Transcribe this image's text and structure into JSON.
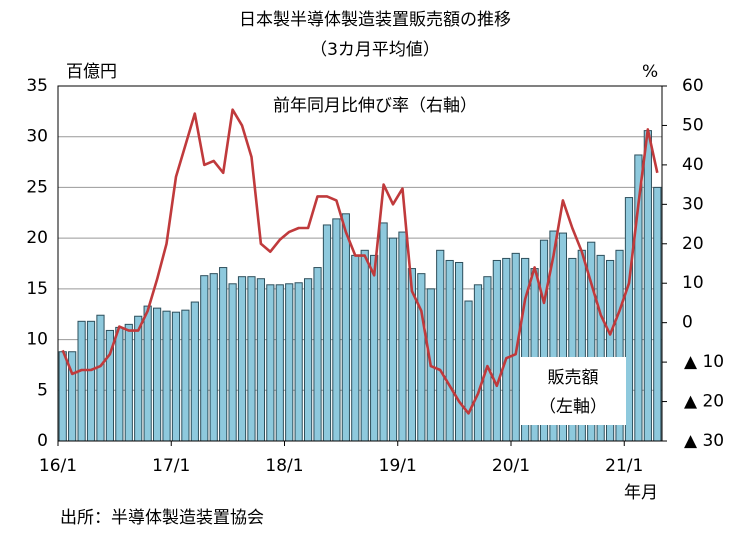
{
  "chart_data": {
    "type": "bar_line",
    "title": "日本製半導体製造装置販売額の推移",
    "subtitle": "（3カ月平均値）",
    "y_label": "百億円",
    "y2_label": "%",
    "x_label": "年月",
    "source": "出所：半導体製造装置協会",
    "annotations": [
      "前年同月比伸び率（右軸）",
      "販売額",
      "（左軸）"
    ],
    "categories": [
      "16/1",
      null,
      null,
      null,
      null,
      null,
      null,
      null,
      null,
      null,
      null,
      null,
      "17/1",
      null,
      null,
      null,
      null,
      null,
      null,
      null,
      null,
      null,
      null,
      null,
      "18/1",
      null,
      null,
      null,
      null,
      null,
      null,
      null,
      null,
      null,
      null,
      null,
      "19/1",
      null,
      null,
      null,
      null,
      null,
      null,
      null,
      null,
      null,
      null,
      null,
      "20/1",
      null,
      null,
      null,
      null,
      null,
      null,
      null,
      null,
      null,
      null,
      null,
      "21/1",
      null,
      null,
      null
    ],
    "series": [
      {
        "name": "販売額",
        "color": "#8ec9dd",
        "values": [
          8.8,
          8.8,
          11.8,
          11.8,
          12.4,
          10.9,
          11.2,
          11.5,
          12.3,
          13.3,
          13.1,
          12.8,
          12.7,
          12.9,
          13.7,
          16.3,
          16.5,
          17.1,
          15.5,
          16.2,
          16.2,
          16.0,
          15.4,
          15.4,
          15.5,
          15.6,
          16.0,
          17.1,
          21.3,
          21.9,
          22.4,
          18.3,
          18.8,
          18.3,
          21.5,
          20.0,
          20.6,
          17.0,
          16.5,
          15.0,
          18.8,
          17.8,
          17.6,
          13.8,
          15.4,
          16.2,
          17.8,
          18.0,
          18.5,
          18.0,
          17.0,
          19.8,
          20.7,
          20.5,
          18.0,
          18.8,
          19.6,
          18.3,
          17.8,
          18.8,
          24.0,
          28.2,
          30.6,
          25.0
        ]
      },
      {
        "name": "前年同月比伸び率",
        "color": "#c03a3c",
        "axis": "y2",
        "values": [
          -7,
          -13,
          -12,
          -12,
          -11,
          -8,
          -1,
          -2,
          -2,
          3,
          11,
          20,
          37,
          45,
          53,
          40,
          41,
          38,
          54,
          50,
          42,
          20,
          18,
          21,
          23,
          24,
          24,
          32,
          32,
          31,
          23,
          17,
          17,
          12,
          35,
          30,
          34,
          8,
          3,
          -11,
          -12,
          -16,
          -20,
          -23,
          -18,
          -11,
          -16,
          -9,
          -8,
          6,
          14,
          5,
          17,
          31,
          24,
          18,
          10,
          2,
          -3,
          3,
          10,
          30,
          49,
          38
        ]
      }
    ],
    "ylim": [
      0,
      35
    ],
    "yticks": [
      0,
      5,
      10,
      15,
      20,
      25,
      30,
      35
    ],
    "y2lim": [
      -30,
      60
    ],
    "y2ticks": [
      {
        "value": -30,
        "label": "▲ 30"
      },
      {
        "value": -20,
        "label": "▲ 20"
      },
      {
        "value": -10,
        "label": "▲ 10"
      },
      0,
      10,
      20,
      30,
      40,
      50,
      60
    ],
    "grid": true
  }
}
